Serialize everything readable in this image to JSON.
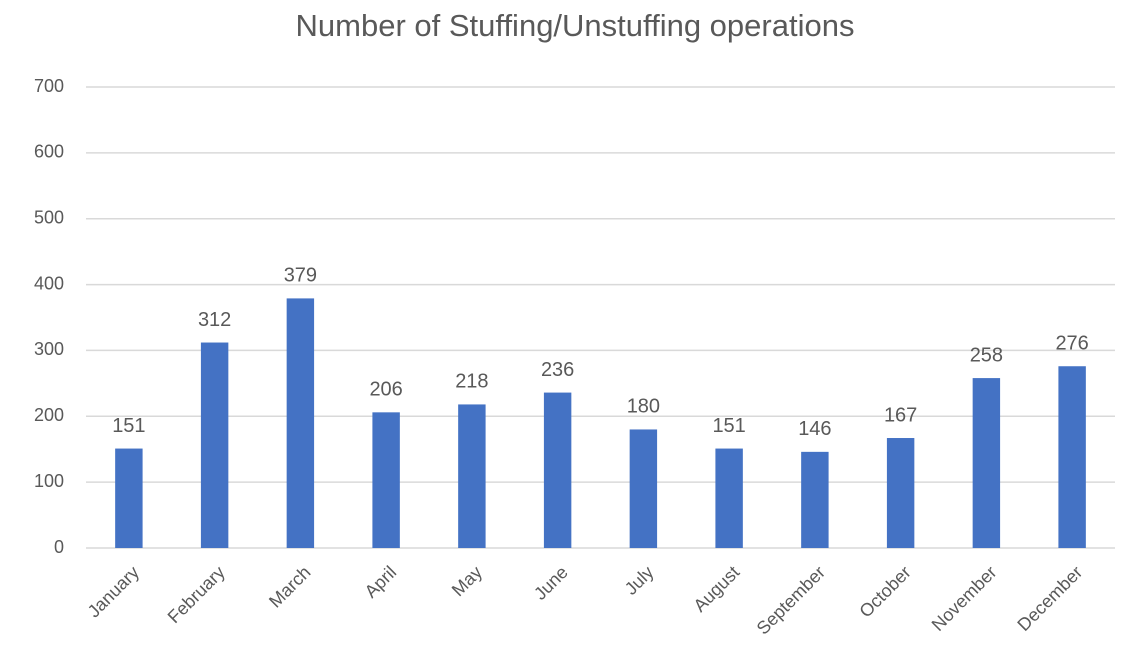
{
  "chart_data": {
    "type": "bar",
    "title": "Number of Stuffing/Unstuffing operations",
    "categories": [
      "January",
      "February",
      "March",
      "April",
      "May",
      "June",
      "July",
      "August",
      "September",
      "October",
      "November",
      "December"
    ],
    "values": [
      151,
      312,
      379,
      206,
      218,
      236,
      180,
      151,
      146,
      167,
      258,
      276
    ],
    "color": "#4472c4",
    "ylim": [
      0,
      700
    ],
    "yticks": [
      0,
      100,
      200,
      300,
      400,
      500,
      600,
      700
    ],
    "grid": true
  }
}
